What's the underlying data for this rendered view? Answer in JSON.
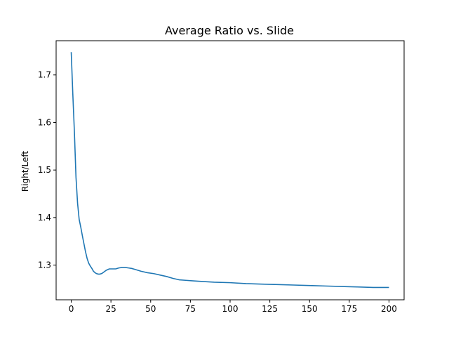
{
  "chart_data": {
    "type": "line",
    "title": "Average Ratio vs. Slide",
    "xlabel": "",
    "ylabel": "Right/Left",
    "xlim": [
      -9.5,
      209.5
    ],
    "ylim": [
      1.227,
      1.772
    ],
    "xticks": [
      0,
      25,
      50,
      75,
      100,
      125,
      150,
      175,
      200
    ],
    "yticks": [
      1.3,
      1.4,
      1.5,
      1.6,
      1.7
    ],
    "ytick_labels": [
      "1.3",
      "1.4",
      "1.5",
      "1.6",
      "1.7"
    ],
    "grid": false,
    "line_color": "#1f77b4",
    "x": [
      0,
      1,
      2,
      3,
      4,
      5,
      6,
      7,
      8,
      9,
      10,
      11,
      12,
      13,
      14,
      15,
      16,
      17,
      18,
      19,
      20,
      22,
      24,
      26,
      28,
      30,
      32,
      34,
      36,
      38,
      40,
      44,
      48,
      52,
      56,
      60,
      64,
      68,
      72,
      76,
      80,
      90,
      100,
      110,
      120,
      130,
      140,
      150,
      160,
      170,
      180,
      190,
      200
    ],
    "y": [
      1.748,
      1.66,
      1.58,
      1.485,
      1.43,
      1.396,
      1.38,
      1.362,
      1.345,
      1.328,
      1.314,
      1.304,
      1.298,
      1.293,
      1.287,
      1.284,
      1.282,
      1.281,
      1.281,
      1.282,
      1.284,
      1.289,
      1.292,
      1.292,
      1.292,
      1.294,
      1.295,
      1.295,
      1.294,
      1.293,
      1.291,
      1.287,
      1.284,
      1.282,
      1.279,
      1.276,
      1.272,
      1.269,
      1.268,
      1.267,
      1.266,
      1.264,
      1.263,
      1.261,
      1.26,
      1.259,
      1.258,
      1.257,
      1.256,
      1.255,
      1.254,
      1.253,
      1.253
    ]
  }
}
